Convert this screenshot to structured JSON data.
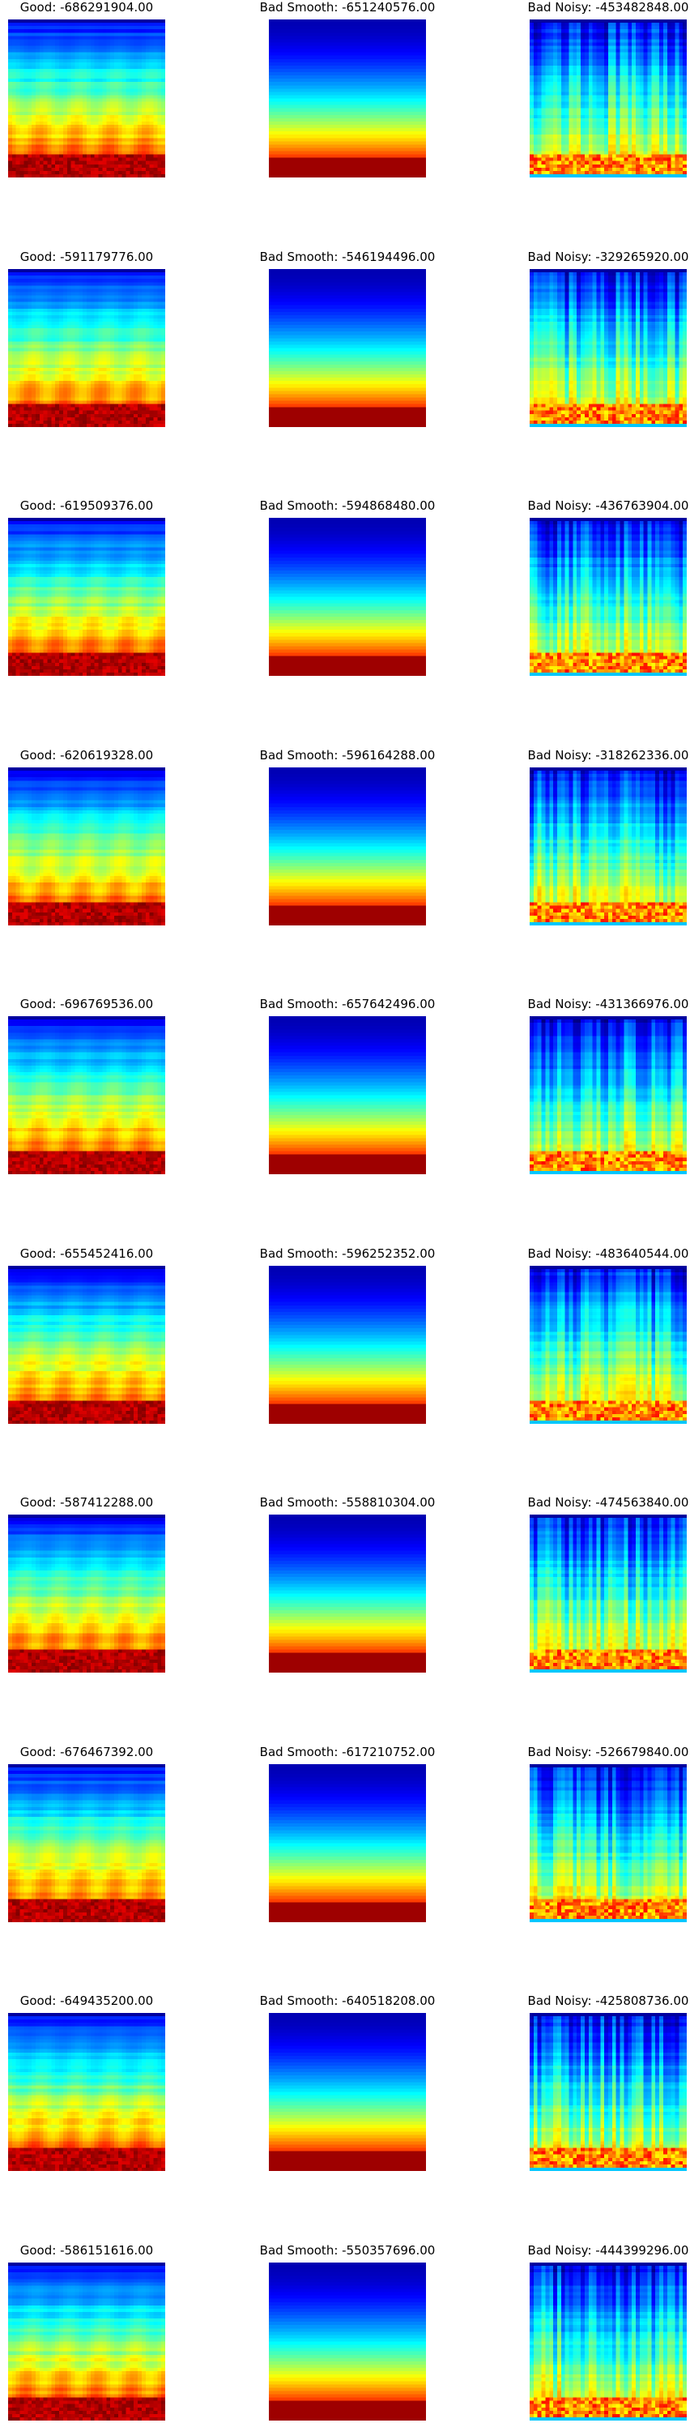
{
  "chart_data": {
    "type": "heatmap",
    "colormap": "jet",
    "axes_visible": false,
    "columns": [
      "Good",
      "Bad Smooth",
      "Bad Noisy"
    ],
    "panels": [
      {
        "row": 1,
        "col": 1,
        "title": "Good: -686291904.00",
        "label": "Good",
        "score": -686291904.0,
        "style": "good"
      },
      {
        "row": 1,
        "col": 2,
        "title": "Bad Smooth: -651240576.00",
        "label": "Bad Smooth",
        "score": -651240576.0,
        "style": "smooth"
      },
      {
        "row": 1,
        "col": 3,
        "title": "Bad Noisy: -453482848.00",
        "label": "Bad Noisy",
        "score": -453482848.0,
        "style": "noisy"
      },
      {
        "row": 2,
        "col": 1,
        "title": "Good: -591179776.00",
        "label": "Good",
        "score": -591179776.0,
        "style": "good"
      },
      {
        "row": 2,
        "col": 2,
        "title": "Bad Smooth: -546194496.00",
        "label": "Bad Smooth",
        "score": -546194496.0,
        "style": "smooth"
      },
      {
        "row": 2,
        "col": 3,
        "title": "Bad Noisy: -329265920.00",
        "label": "Bad Noisy",
        "score": -329265920.0,
        "style": "noisy"
      },
      {
        "row": 3,
        "col": 1,
        "title": "Good: -619509376.00",
        "label": "Good",
        "score": -619509376.0,
        "style": "good"
      },
      {
        "row": 3,
        "col": 2,
        "title": "Bad Smooth: -594868480.00",
        "label": "Bad Smooth",
        "score": -594868480.0,
        "style": "smooth"
      },
      {
        "row": 3,
        "col": 3,
        "title": "Bad Noisy: -436763904.00",
        "label": "Bad Noisy",
        "score": -436763904.0,
        "style": "noisy"
      },
      {
        "row": 4,
        "col": 1,
        "title": "Good: -620619328.00",
        "label": "Good",
        "score": -620619328.0,
        "style": "good"
      },
      {
        "row": 4,
        "col": 2,
        "title": "Bad Smooth: -596164288.00",
        "label": "Bad Smooth",
        "score": -596164288.0,
        "style": "smooth"
      },
      {
        "row": 4,
        "col": 3,
        "title": "Bad Noisy: -318262336.00",
        "label": "Bad Noisy",
        "score": -318262336.0,
        "style": "noisy"
      },
      {
        "row": 5,
        "col": 1,
        "title": "Good: -696769536.00",
        "label": "Good",
        "score": -696769536.0,
        "style": "good"
      },
      {
        "row": 5,
        "col": 2,
        "title": "Bad Smooth: -657642496.00",
        "label": "Bad Smooth",
        "score": -657642496.0,
        "style": "smooth"
      },
      {
        "row": 5,
        "col": 3,
        "title": "Bad Noisy: -431366976.00",
        "label": "Bad Noisy",
        "score": -431366976.0,
        "style": "noisy"
      },
      {
        "row": 6,
        "col": 1,
        "title": "Good: -655452416.00",
        "label": "Good",
        "score": -655452416.0,
        "style": "good"
      },
      {
        "row": 6,
        "col": 2,
        "title": "Bad Smooth: -596252352.00",
        "label": "Bad Smooth",
        "score": -596252352.0,
        "style": "smooth"
      },
      {
        "row": 6,
        "col": 3,
        "title": "Bad Noisy: -483640544.00",
        "label": "Bad Noisy",
        "score": -483640544.0,
        "style": "noisy"
      },
      {
        "row": 7,
        "col": 1,
        "title": "Good: -587412288.00",
        "label": "Good",
        "score": -587412288.0,
        "style": "good"
      },
      {
        "row": 7,
        "col": 2,
        "title": "Bad Smooth: -558810304.00",
        "label": "Bad Smooth",
        "score": -558810304.0,
        "style": "smooth"
      },
      {
        "row": 7,
        "col": 3,
        "title": "Bad Noisy: -474563840.00",
        "label": "Bad Noisy",
        "score": -474563840.0,
        "style": "noisy"
      },
      {
        "row": 8,
        "col": 1,
        "title": "Good: -676467392.00",
        "label": "Good",
        "score": -676467392.0,
        "style": "good"
      },
      {
        "row": 8,
        "col": 2,
        "title": "Bad Smooth: -617210752.00",
        "label": "Bad Smooth",
        "score": -617210752.0,
        "style": "smooth"
      },
      {
        "row": 8,
        "col": 3,
        "title": "Bad Noisy: -526679840.00",
        "label": "Bad Noisy",
        "score": -526679840.0,
        "style": "noisy"
      },
      {
        "row": 9,
        "col": 1,
        "title": "Good: -649435200.00",
        "label": "Good",
        "score": -649435200.0,
        "style": "good"
      },
      {
        "row": 9,
        "col": 2,
        "title": "Bad Smooth: -640518208.00",
        "label": "Bad Smooth",
        "score": -640518208.0,
        "style": "smooth"
      },
      {
        "row": 9,
        "col": 3,
        "title": "Bad Noisy: -425808736.00",
        "label": "Bad Noisy",
        "score": -425808736.0,
        "style": "noisy"
      },
      {
        "row": 10,
        "col": 1,
        "title": "Good: -586151616.00",
        "label": "Good",
        "score": -586151616.0,
        "style": "good"
      },
      {
        "row": 10,
        "col": 2,
        "title": "Bad Smooth: -550357696.00",
        "label": "Bad Smooth",
        "score": -550357696.0,
        "style": "smooth"
      },
      {
        "row": 10,
        "col": 3,
        "title": "Bad Noisy: -444399296.00",
        "label": "Bad Noisy",
        "score": -444399296.0,
        "style": "noisy"
      }
    ]
  }
}
